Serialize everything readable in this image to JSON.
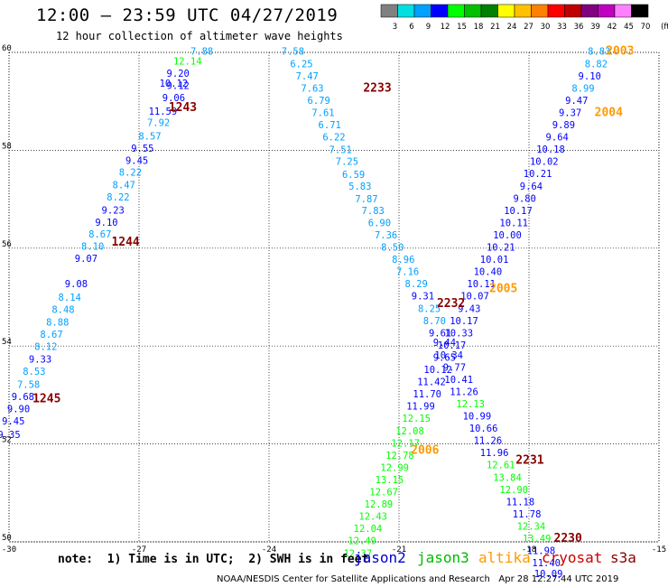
{
  "header": {
    "title": "12:00 — 23:59 UTC 04/27/2019",
    "subtitle": "12 hour collection of altimeter wave heights"
  },
  "colorbar": {
    "labels": [
      "3",
      "6",
      "9",
      "12",
      "15",
      "18",
      "21",
      "24",
      "27",
      "30",
      "33",
      "36",
      "39",
      "42",
      "45",
      "70",
      "(ft)"
    ],
    "colors": [
      "#808080",
      "#00e0e0",
      "#00a0ff",
      "#0000ff",
      "#00ff00",
      "#00c000",
      "#008000",
      "#ffff00",
      "#ffc000",
      "#ff8000",
      "#ff0000",
      "#c00000",
      "#800080",
      "#c000c0",
      "#ff80ff",
      "#000000"
    ]
  },
  "note": "note:  1) Time is in UTC;  2) SWH is in feet",
  "legend": [
    {
      "name": "jason2",
      "color": "#0000cc"
    },
    {
      "name": "jason3",
      "color": "#00bb00"
    },
    {
      "name": "altika",
      "color": "#ff9900"
    },
    {
      "name": "cryosat",
      "color": "#cc0000"
    },
    {
      "name": "s3a",
      "color": "#880000"
    }
  ],
  "credit": "NOAA/NESDIS Center for Satellite Applications and Research   Apr 28 12:27:44 UTC 2019",
  "chart_data": {
    "type": "scatter",
    "title": "12:00 — 23:59 UTC 04/27/2019",
    "subtitle": "12 hour collection of altimeter wave heights",
    "xlim": [
      -30,
      -15
    ],
    "ylim": [
      50,
      60
    ],
    "x_ticks": [
      "-30",
      "-27",
      "-24",
      "-21",
      "-18",
      "-15"
    ],
    "y_ticks": [
      "50",
      "52",
      "54",
      "56",
      "58",
      "60"
    ],
    "grid": true,
    "units": "ft",
    "passes": [
      {
        "label": "1243",
        "color": "#880000",
        "lon": -25.99,
        "lat": 58.8
      },
      {
        "label": "1244",
        "color": "#880000",
        "lon": -27.31,
        "lat": 56.05
      },
      {
        "label": "1245",
        "color": "#880000",
        "lon": -29.13,
        "lat": 52.85
      },
      {
        "label": "2233",
        "color": "#880000",
        "lon": -21.5,
        "lat": 59.2
      },
      {
        "label": "2232",
        "color": "#880000",
        "lon": -19.8,
        "lat": 54.8
      },
      {
        "label": "2231",
        "color": "#880000",
        "lon": -17.98,
        "lat": 51.6
      },
      {
        "label": "2230",
        "color": "#880000",
        "lon": -17.1,
        "lat": 50.0
      },
      {
        "label": "2003",
        "color": "#ff9900",
        "lon": -15.9,
        "lat": 59.95
      },
      {
        "label": "2004",
        "color": "#ff9900",
        "lon": -16.16,
        "lat": 58.7
      },
      {
        "label": "2005",
        "color": "#ff9900",
        "lon": -18.59,
        "lat": 55.1
      },
      {
        "label": "2006",
        "color": "#ff9900",
        "lon": -20.4,
        "lat": 51.8
      }
    ],
    "series": [
      {
        "satellite": "s3a",
        "points": [
          {
            "lon": -25.55,
            "lat": 59.95,
            "swh": "7.88",
            "c": "#00a0ff"
          },
          {
            "lon": -25.88,
            "lat": 59.75,
            "swh": "12.14",
            "c": "#00ff00"
          },
          {
            "lon": -26.1,
            "lat": 59.5,
            "swh": "9.20",
            "c": "#0000ff"
          },
          {
            "lon": -26.2,
            "lat": 59.3,
            "swh": "10.12",
            "c": "#0000ff"
          },
          {
            "lon": -26.1,
            "lat": 59.25,
            "swh": "9.12",
            "c": "#0000ff"
          },
          {
            "lon": -26.2,
            "lat": 59.0,
            "swh": "9.06",
            "c": "#0000ff"
          },
          {
            "lon": -26.45,
            "lat": 58.73,
            "swh": "11.59",
            "c": "#0000ff"
          },
          {
            "lon": -26.55,
            "lat": 58.5,
            "swh": "7.92",
            "c": "#00a0ff"
          },
          {
            "lon": -26.75,
            "lat": 58.22,
            "swh": "8.57",
            "c": "#00a0ff"
          },
          {
            "lon": -26.92,
            "lat": 57.97,
            "swh": "9.55",
            "c": "#0000ff"
          },
          {
            "lon": -27.05,
            "lat": 57.72,
            "swh": "9.45",
            "c": "#0000ff"
          },
          {
            "lon": -27.2,
            "lat": 57.48,
            "swh": "8.22",
            "c": "#00a0ff"
          },
          {
            "lon": -27.35,
            "lat": 57.22,
            "swh": "8.47",
            "c": "#00a0ff"
          },
          {
            "lon": -27.48,
            "lat": 56.97,
            "swh": "8.22",
            "c": "#00a0ff"
          },
          {
            "lon": -27.6,
            "lat": 56.71,
            "swh": "9.23",
            "c": "#0000ff"
          },
          {
            "lon": -27.75,
            "lat": 56.46,
            "swh": "9.10",
            "c": "#0000ff"
          },
          {
            "lon": -27.9,
            "lat": 56.22,
            "swh": "8.67",
            "c": "#00a0ff"
          },
          {
            "lon": -28.07,
            "lat": 55.97,
            "swh": "8.10",
            "c": "#00a0ff"
          },
          {
            "lon": -28.22,
            "lat": 55.72,
            "swh": "9.07",
            "c": "#0000ff"
          },
          {
            "lon": -28.45,
            "lat": 55.2,
            "swh": "9.08",
            "c": "#0000ff"
          },
          {
            "lon": -28.6,
            "lat": 54.93,
            "swh": "8.14",
            "c": "#00a0ff"
          },
          {
            "lon": -28.75,
            "lat": 54.68,
            "swh": "8.48",
            "c": "#00a0ff"
          },
          {
            "lon": -28.88,
            "lat": 54.42,
            "swh": "8.88",
            "c": "#00a0ff"
          },
          {
            "lon": -29.02,
            "lat": 54.17,
            "swh": "8.67",
            "c": "#00a0ff"
          },
          {
            "lon": -29.15,
            "lat": 53.92,
            "swh": "8.12",
            "c": "#00a0ff"
          },
          {
            "lon": -29.28,
            "lat": 53.66,
            "swh": "9.33",
            "c": "#0000ff"
          },
          {
            "lon": -29.42,
            "lat": 53.41,
            "swh": "8.53",
            "c": "#00a0ff"
          },
          {
            "lon": -29.55,
            "lat": 53.15,
            "swh": "7.58",
            "c": "#00a0ff"
          },
          {
            "lon": -29.68,
            "lat": 52.9,
            "swh": "9.68",
            "c": "#0000ff"
          },
          {
            "lon": -29.78,
            "lat": 52.65,
            "swh": "9.90",
            "c": "#0000ff"
          },
          {
            "lon": -29.9,
            "lat": 52.4,
            "swh": "9.45",
            "c": "#0000ff"
          },
          {
            "lon": -30.0,
            "lat": 52.12,
            "swh": "9.35",
            "c": "#0000ff"
          }
        ]
      },
      {
        "satellite": "cryosat",
        "points": [
          {
            "lon": -23.45,
            "lat": 59.95,
            "swh": "7.58",
            "c": "#00a0ff"
          },
          {
            "lon": -23.25,
            "lat": 59.7,
            "swh": "6.25",
            "c": "#00a0ff"
          },
          {
            "lon": -23.12,
            "lat": 59.45,
            "swh": "7.47",
            "c": "#00a0ff"
          },
          {
            "lon": -23.0,
            "lat": 59.2,
            "swh": "7.63",
            "c": "#00a0ff"
          },
          {
            "lon": -22.85,
            "lat": 58.95,
            "swh": "6.79",
            "c": "#00a0ff"
          },
          {
            "lon": -22.75,
            "lat": 58.7,
            "swh": "7.61",
            "c": "#00a0ff"
          },
          {
            "lon": -22.6,
            "lat": 58.45,
            "swh": "6.71",
            "c": "#00a0ff"
          },
          {
            "lon": -22.5,
            "lat": 58.2,
            "swh": "6.22",
            "c": "#00a0ff"
          },
          {
            "lon": -22.35,
            "lat": 57.94,
            "swh": "7.51",
            "c": "#00a0ff"
          },
          {
            "lon": -22.2,
            "lat": 57.7,
            "swh": "7.25",
            "c": "#00a0ff"
          },
          {
            "lon": -22.05,
            "lat": 57.44,
            "swh": "6.59",
            "c": "#00a0ff"
          },
          {
            "lon": -21.9,
            "lat": 57.2,
            "swh": "5.83",
            "c": "#00a0ff"
          },
          {
            "lon": -21.75,
            "lat": 56.94,
            "swh": "7.87",
            "c": "#00a0ff"
          },
          {
            "lon": -21.6,
            "lat": 56.7,
            "swh": "7.83",
            "c": "#00a0ff"
          },
          {
            "lon": -21.45,
            "lat": 56.45,
            "swh": "6.90",
            "c": "#00a0ff"
          },
          {
            "lon": -21.3,
            "lat": 56.2,
            "swh": "7.36",
            "c": "#00a0ff"
          },
          {
            "lon": -21.15,
            "lat": 55.95,
            "swh": "8.50",
            "c": "#00a0ff"
          },
          {
            "lon": -20.9,
            "lat": 55.7,
            "swh": "8.96",
            "c": "#00a0ff"
          },
          {
            "lon": -20.8,
            "lat": 55.45,
            "swh": "7.16",
            "c": "#00a0ff"
          },
          {
            "lon": -20.6,
            "lat": 55.2,
            "swh": "8.29",
            "c": "#00a0ff"
          },
          {
            "lon": -20.45,
            "lat": 54.95,
            "swh": "9.31",
            "c": "#0000ff"
          },
          {
            "lon": -20.3,
            "lat": 54.7,
            "swh": "8.25",
            "c": "#00a0ff"
          },
          {
            "lon": -20.18,
            "lat": 54.45,
            "swh": "8.70",
            "c": "#00a0ff"
          },
          {
            "lon": -20.05,
            "lat": 54.2,
            "swh": "9.61",
            "c": "#0000ff"
          },
          {
            "lon": -19.95,
            "lat": 54.0,
            "swh": "9.44",
            "c": "#0000ff"
          },
          {
            "lon": -19.85,
            "lat": 53.75,
            "swh": "10.34",
            "c": "#0000ff"
          },
          {
            "lon": -19.72,
            "lat": 53.5,
            "swh": "9.77",
            "c": "#0000ff"
          },
          {
            "lon": -19.62,
            "lat": 53.25,
            "swh": "10.41",
            "c": "#0000ff"
          },
          {
            "lon": -19.5,
            "lat": 53.0,
            "swh": "11.26",
            "c": "#0000ff"
          },
          {
            "lon": -19.35,
            "lat": 52.75,
            "swh": "12.13",
            "c": "#00ff00"
          },
          {
            "lon": -19.2,
            "lat": 52.5,
            "swh": "10.99",
            "c": "#0000ff"
          },
          {
            "lon": -19.05,
            "lat": 52.25,
            "swh": "10.66",
            "c": "#0000ff"
          },
          {
            "lon": -18.95,
            "lat": 52.0,
            "swh": "11.26",
            "c": "#0000ff"
          },
          {
            "lon": -18.8,
            "lat": 51.75,
            "swh": "11.96",
            "c": "#0000ff"
          },
          {
            "lon": -18.65,
            "lat": 51.5,
            "swh": "12.61",
            "c": "#00ff00"
          },
          {
            "lon": -18.5,
            "lat": 51.25,
            "swh": "13.84",
            "c": "#00ff00"
          },
          {
            "lon": -18.35,
            "lat": 51.0,
            "swh": "12.90",
            "c": "#00ff00"
          },
          {
            "lon": -18.2,
            "lat": 50.75,
            "swh": "11.18",
            "c": "#0000ff"
          },
          {
            "lon": -18.05,
            "lat": 50.5,
            "swh": "11.78",
            "c": "#0000ff"
          },
          {
            "lon": -17.95,
            "lat": 50.25,
            "swh": "12.34",
            "c": "#00ff00"
          },
          {
            "lon": -17.82,
            "lat": 50.0,
            "swh": "13.49",
            "c": "#00ff00"
          },
          {
            "lon": -17.72,
            "lat": 49.75,
            "swh": "11.98",
            "c": "#0000ff"
          },
          {
            "lon": -17.6,
            "lat": 49.5,
            "swh": "11.40",
            "c": "#0000ff"
          },
          {
            "lon": -17.55,
            "lat": 49.28,
            "swh": "10.09",
            "c": "#0000ff"
          }
        ]
      },
      {
        "satellite": "altika",
        "points": [
          {
            "lon": -16.38,
            "lat": 59.95,
            "swh": "8.83",
            "c": "#00a0ff"
          },
          {
            "lon": -16.45,
            "lat": 59.7,
            "swh": "8.82",
            "c": "#00a0ff"
          },
          {
            "lon": -16.6,
            "lat": 59.45,
            "swh": "9.10",
            "c": "#0000ff"
          },
          {
            "lon": -16.75,
            "lat": 59.2,
            "swh": "8.99",
            "c": "#00a0ff"
          },
          {
            "lon": -16.9,
            "lat": 58.95,
            "swh": "9.47",
            "c": "#0000ff"
          },
          {
            "lon": -17.05,
            "lat": 58.7,
            "swh": "9.37",
            "c": "#0000ff"
          },
          {
            "lon": -17.2,
            "lat": 58.45,
            "swh": "9.89",
            "c": "#0000ff"
          },
          {
            "lon": -17.35,
            "lat": 58.2,
            "swh": "9.64",
            "c": "#0000ff"
          },
          {
            "lon": -17.5,
            "lat": 57.95,
            "swh": "10.18",
            "c": "#0000ff"
          },
          {
            "lon": -17.65,
            "lat": 57.7,
            "swh": "10.02",
            "c": "#0000ff"
          },
          {
            "lon": -17.8,
            "lat": 57.45,
            "swh": "10.21",
            "c": "#0000ff"
          },
          {
            "lon": -17.95,
            "lat": 57.2,
            "swh": "9.64",
            "c": "#0000ff"
          },
          {
            "lon": -18.1,
            "lat": 56.95,
            "swh": "9.80",
            "c": "#0000ff"
          },
          {
            "lon": -18.25,
            "lat": 56.7,
            "swh": "10.17",
            "c": "#0000ff"
          },
          {
            "lon": -18.35,
            "lat": 56.45,
            "swh": "10.11",
            "c": "#0000ff"
          },
          {
            "lon": -18.5,
            "lat": 56.2,
            "swh": "10.00",
            "c": "#0000ff"
          },
          {
            "lon": -18.65,
            "lat": 55.95,
            "swh": "10.21",
            "c": "#0000ff"
          },
          {
            "lon": -18.8,
            "lat": 55.7,
            "swh": "10.01",
            "c": "#0000ff"
          },
          {
            "lon": -18.95,
            "lat": 55.45,
            "swh": "10.40",
            "c": "#0000ff"
          },
          {
            "lon": -19.1,
            "lat": 55.2,
            "swh": "10.11",
            "c": "#0000ff"
          },
          {
            "lon": -19.25,
            "lat": 54.95,
            "swh": "10.07",
            "c": "#0000ff"
          },
          {
            "lon": -19.38,
            "lat": 54.7,
            "swh": "9.43",
            "c": "#0000ff"
          },
          {
            "lon": -19.5,
            "lat": 54.45,
            "swh": "10.17",
            "c": "#0000ff"
          },
          {
            "lon": -19.62,
            "lat": 54.2,
            "swh": "10.33",
            "c": "#0000ff"
          },
          {
            "lon": -19.78,
            "lat": 53.95,
            "swh": "10.17",
            "c": "#0000ff"
          },
          {
            "lon": -19.95,
            "lat": 53.7,
            "swh": "9.65",
            "c": "#0000ff"
          },
          {
            "lon": -20.1,
            "lat": 53.45,
            "swh": "10.12",
            "c": "#0000ff"
          },
          {
            "lon": -20.25,
            "lat": 53.2,
            "swh": "11.42",
            "c": "#0000ff"
          },
          {
            "lon": -20.35,
            "lat": 52.95,
            "swh": "11.70",
            "c": "#0000ff"
          },
          {
            "lon": -20.5,
            "lat": 52.7,
            "swh": "11.99",
            "c": "#0000ff"
          },
          {
            "lon": -20.6,
            "lat": 52.45,
            "swh": "12.15",
            "c": "#00ff00"
          },
          {
            "lon": -20.75,
            "lat": 52.2,
            "swh": "12.08",
            "c": "#00ff00"
          },
          {
            "lon": -20.85,
            "lat": 51.95,
            "swh": "12.17",
            "c": "#00ff00"
          },
          {
            "lon": -20.98,
            "lat": 51.7,
            "swh": "12.78",
            "c": "#00ff00"
          },
          {
            "lon": -21.1,
            "lat": 51.45,
            "swh": "12.99",
            "c": "#00ff00"
          },
          {
            "lon": -21.22,
            "lat": 51.2,
            "swh": "13.15",
            "c": "#00ff00"
          },
          {
            "lon": -21.35,
            "lat": 50.95,
            "swh": "12.67",
            "c": "#00ff00"
          },
          {
            "lon": -21.47,
            "lat": 50.7,
            "swh": "12.89",
            "c": "#00ff00"
          },
          {
            "lon": -21.6,
            "lat": 50.45,
            "swh": "12.43",
            "c": "#00ff00"
          },
          {
            "lon": -21.72,
            "lat": 50.2,
            "swh": "12.04",
            "c": "#00ff00"
          },
          {
            "lon": -21.85,
            "lat": 49.95,
            "swh": "12.49",
            "c": "#00ff00"
          },
          {
            "lon": -21.95,
            "lat": 49.7,
            "swh": "12.37",
            "c": "#00ff00"
          }
        ]
      }
    ]
  }
}
